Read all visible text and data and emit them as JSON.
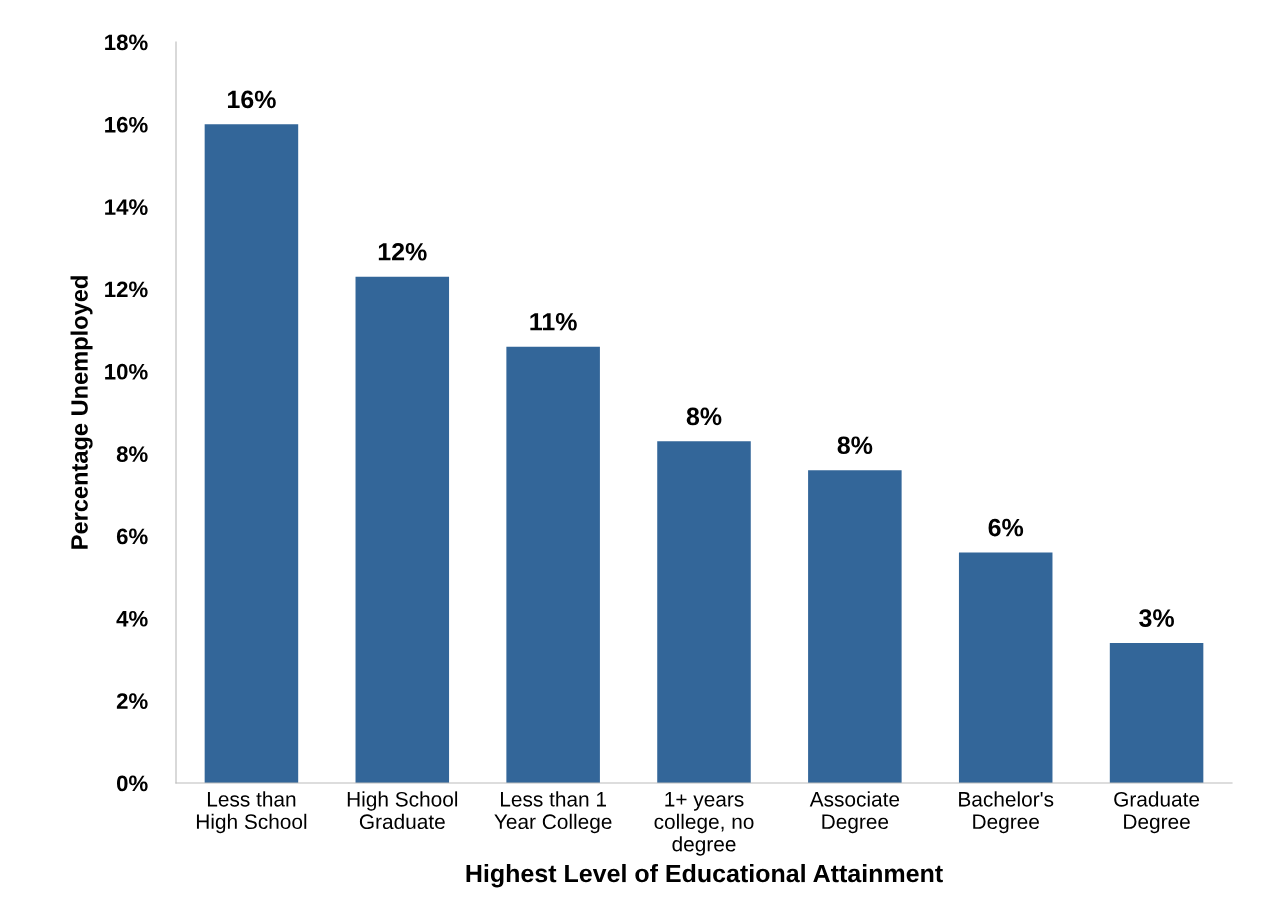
{
  "chart_data": {
    "type": "bar",
    "xlabel": "Highest Level of Educational Attainment",
    "ylabel": "Percentage Unemployed",
    "categories": [
      "Less than\nHigh School",
      "High School\nGraduate",
      "Less than 1\nYear College",
      "1+ years\ncollege, no\ndegree",
      "Associate\nDegree",
      "Bachelor's\nDegree",
      "Graduate\nDegree"
    ],
    "values": [
      16.0,
      12.3,
      10.6,
      8.3,
      7.6,
      5.6,
      3.4
    ],
    "value_labels": [
      "16%",
      "12%",
      "11%",
      "8%",
      "8%",
      "6%",
      "3%"
    ],
    "color": "#336699",
    "ylim": [
      0,
      18
    ],
    "yticks": [
      {
        "value": 0,
        "label": "0%"
      },
      {
        "value": 2,
        "label": "2%"
      },
      {
        "value": 4,
        "label": "4%"
      },
      {
        "value": 6,
        "label": "6%"
      },
      {
        "value": 8,
        "label": "8%"
      },
      {
        "value": 10,
        "label": "10%"
      },
      {
        "value": 12,
        "label": "12%"
      },
      {
        "value": 14,
        "label": "14%"
      },
      {
        "value": 16,
        "label": "16%"
      },
      {
        "value": 18,
        "label": "18%"
      }
    ],
    "grid": false,
    "legend": false
  }
}
